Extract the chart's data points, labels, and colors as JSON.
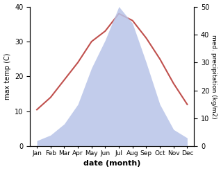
{
  "months": [
    "Jan",
    "Feb",
    "Mar",
    "Apr",
    "May",
    "Jun",
    "Jul",
    "Aug",
    "Sep",
    "Oct",
    "Nov",
    "Dec"
  ],
  "temp": [
    10.5,
    14.0,
    19.0,
    24.0,
    30.0,
    33.0,
    38.0,
    36.0,
    31.0,
    25.0,
    18.0,
    12.0
  ],
  "precip": [
    2.0,
    4.0,
    8.0,
    15.0,
    28.0,
    38.0,
    50.0,
    44.0,
    30.0,
    15.0,
    6.0,
    3.0
  ],
  "temp_color": "#c0504d",
  "fill_color": "#b8c4e8",
  "fill_alpha": 0.85,
  "xlabel": "date (month)",
  "ylabel_left": "max temp (C)",
  "ylabel_right": "med. precipitation (kg/m2)",
  "ylim_left": [
    0,
    40
  ],
  "ylim_right": [
    0,
    50
  ],
  "yticks_left": [
    0,
    10,
    20,
    30,
    40
  ],
  "yticks_right": [
    0,
    10,
    20,
    30,
    40,
    50
  ],
  "bg_color": "#ffffff",
  "precip_right_ticks": [
    0,
    10,
    20,
    30,
    40,
    50
  ]
}
